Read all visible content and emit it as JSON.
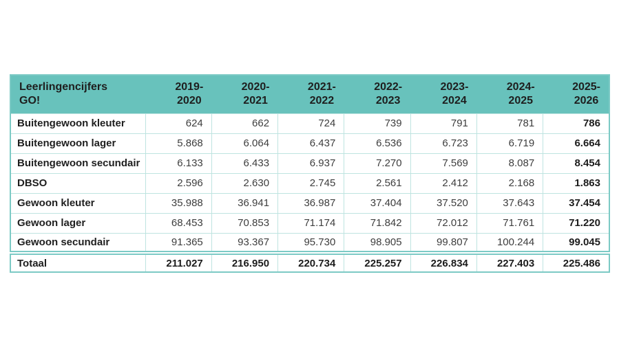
{
  "page": {
    "background": "#ffffff"
  },
  "colors": {
    "header_bg": "#68c2bc",
    "outer_border": "#7ccac5",
    "inner_border": "#bee4e0",
    "text_dark": "#1e1e1e",
    "text_number": "#3d3d3d"
  },
  "table": {
    "title": "Leerlingencijfers\nGO!",
    "columns": [
      "2019-\n2020",
      "2020-\n2021",
      "2021-\n2022",
      "2022-\n2023",
      "2023-\n2024",
      "2024-\n2025",
      "2025-\n2026"
    ],
    "rows": [
      {
        "label": "Buitengewoon kleuter",
        "values": [
          "624",
          "662",
          "724",
          "739",
          "791",
          "781",
          "786"
        ]
      },
      {
        "label": "Buitengewoon lager",
        "values": [
          "5.868",
          "6.064",
          "6.437",
          "6.536",
          "6.723",
          "6.719",
          "6.664"
        ]
      },
      {
        "label": "Buitengewoon secundair",
        "values": [
          "6.133",
          "6.433",
          "6.937",
          "7.270",
          "7.569",
          "8.087",
          "8.454"
        ]
      },
      {
        "label": "DBSO",
        "values": [
          "2.596",
          "2.630",
          "2.745",
          "2.561",
          "2.412",
          "2.168",
          "1.863"
        ]
      },
      {
        "label": "Gewoon kleuter",
        "values": [
          "35.988",
          "36.941",
          "36.987",
          "37.404",
          "37.520",
          "37.643",
          "37.454"
        ]
      },
      {
        "label": "Gewoon lager",
        "values": [
          "68.453",
          "70.853",
          "71.174",
          "71.842",
          "72.012",
          "71.761",
          "71.220"
        ]
      },
      {
        "label": "Gewoon secundair",
        "values": [
          "91.365",
          "93.367",
          "95.730",
          "98.905",
          "99.807",
          "100.244",
          "99.045"
        ]
      }
    ],
    "total": {
      "label": "Totaal",
      "values": [
        "211.027",
        "216.950",
        "220.734",
        "225.257",
        "226.834",
        "227.403",
        "225.486"
      ]
    }
  },
  "chart_data": {
    "type": "table",
    "title": "Leerlingencijfers GO!",
    "columns": [
      "2019-2020",
      "2020-2021",
      "2021-2022",
      "2022-2023",
      "2023-2024",
      "2024-2025",
      "2025-2026"
    ],
    "series": [
      {
        "name": "Buitengewoon kleuter",
        "values": [
          624,
          662,
          724,
          739,
          791,
          781,
          786
        ]
      },
      {
        "name": "Buitengewoon lager",
        "values": [
          5868,
          6064,
          6437,
          6536,
          6723,
          6719,
          6664
        ]
      },
      {
        "name": "Buitengewoon secundair",
        "values": [
          6133,
          6433,
          6937,
          7270,
          7569,
          8087,
          8454
        ]
      },
      {
        "name": "DBSO",
        "values": [
          2596,
          2630,
          2745,
          2561,
          2412,
          2168,
          1863
        ]
      },
      {
        "name": "Gewoon kleuter",
        "values": [
          35988,
          36941,
          36987,
          37404,
          37520,
          37643,
          37454
        ]
      },
      {
        "name": "Gewoon lager",
        "values": [
          68453,
          70853,
          71174,
          71842,
          72012,
          71761,
          71220
        ]
      },
      {
        "name": "Gewoon secundair",
        "values": [
          91365,
          93367,
          95730,
          98905,
          99807,
          100244,
          99045
        ]
      },
      {
        "name": "Totaal",
        "values": [
          211027,
          216950,
          220734,
          225257,
          226834,
          227403,
          225486
        ]
      }
    ]
  }
}
